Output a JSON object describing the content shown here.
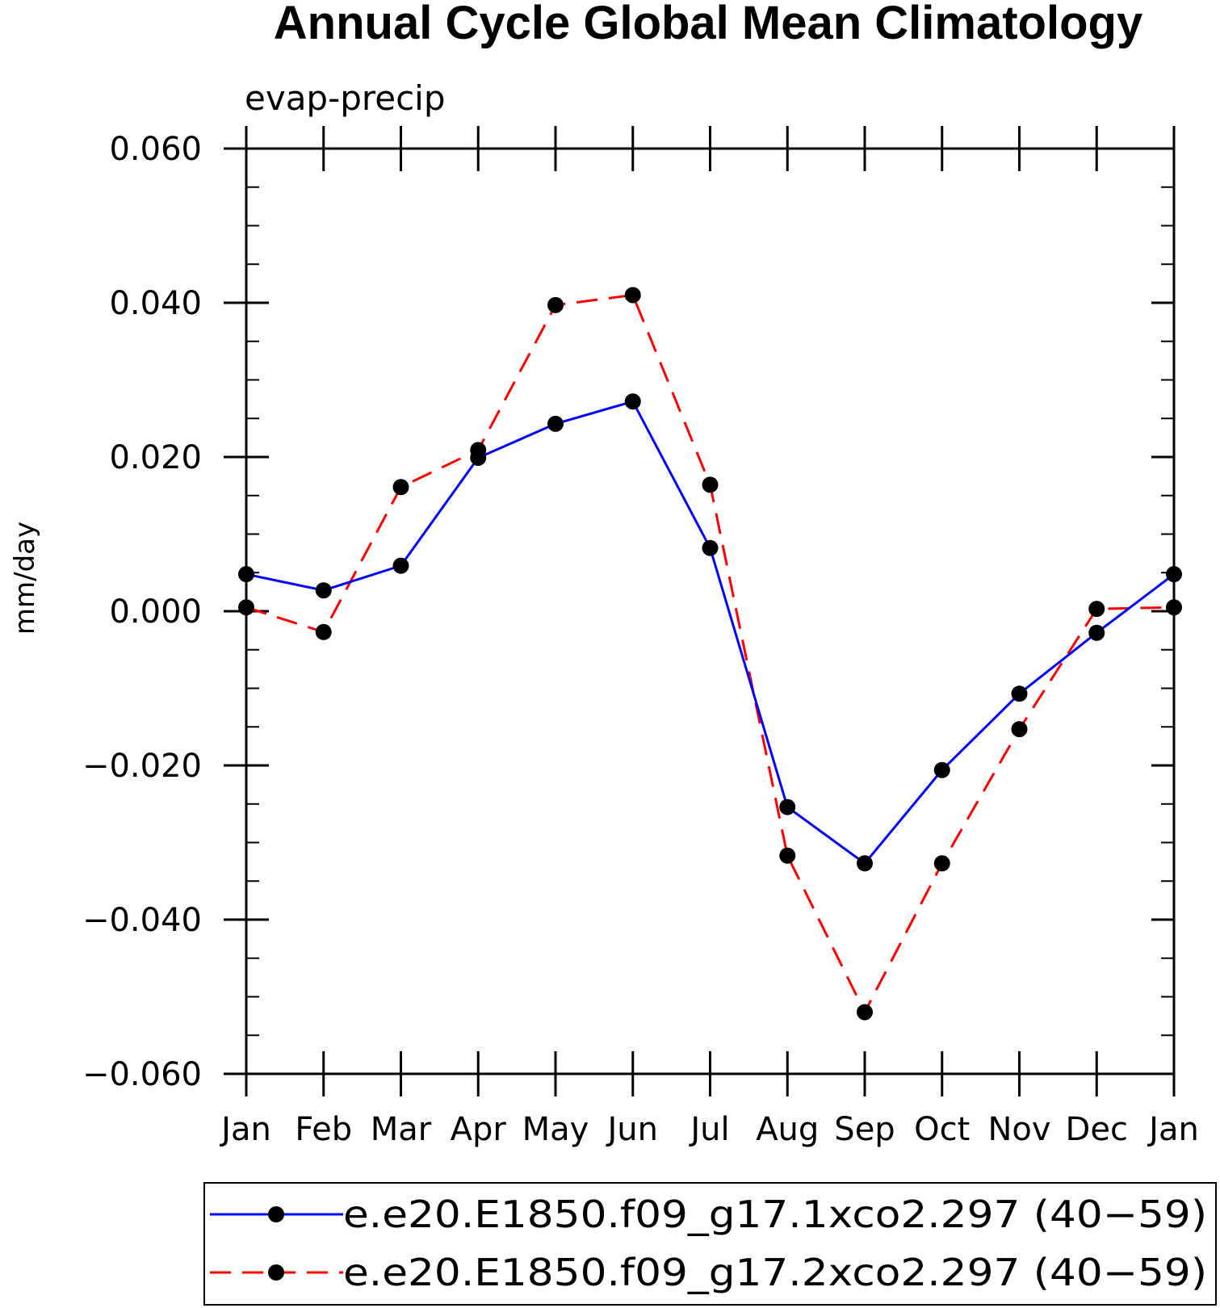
{
  "chart_data": {
    "type": "line",
    "title": "Annual Cycle Global Mean Climatology",
    "subtitle": "evap-precip",
    "xlabel": "",
    "ylabel": "mm/day",
    "categories": [
      "Jan",
      "Feb",
      "Mar",
      "Apr",
      "May",
      "Jun",
      "Jul",
      "Aug",
      "Sep",
      "Oct",
      "Nov",
      "Dec",
      "Jan"
    ],
    "ylim": [
      -0.06,
      0.06
    ],
    "yticks": [
      -0.06,
      -0.04,
      -0.02,
      0.0,
      0.02,
      0.04,
      0.06
    ],
    "ytick_labels": [
      "−0.060",
      "−0.040",
      "−0.020",
      "0.000",
      "0.020",
      "0.040",
      "0.060"
    ],
    "grid": false,
    "legend_position": "bottom",
    "series": [
      {
        "name": "e.e20.E1850.f09_g17.1xco2.297 (40−59)",
        "color": "#0000ff",
        "dash": "solid",
        "marker": "filled-circle",
        "values": [
          0.0048,
          0.0027,
          0.0059,
          0.0199,
          0.0243,
          0.0272,
          0.0082,
          -0.0254,
          -0.0327,
          -0.0206,
          -0.0107,
          -0.0028,
          0.0048
        ]
      },
      {
        "name": "e.e20.E1850.f09_g17.2xco2.297 (40−59)",
        "color": "#ff0000",
        "dash": "dashed",
        "marker": "filled-circle",
        "values": [
          0.0005,
          -0.0027,
          0.0161,
          0.0209,
          0.0397,
          0.041,
          0.0164,
          -0.0317,
          -0.052,
          -0.0327,
          -0.0153,
          0.0003,
          0.0005
        ]
      }
    ]
  }
}
